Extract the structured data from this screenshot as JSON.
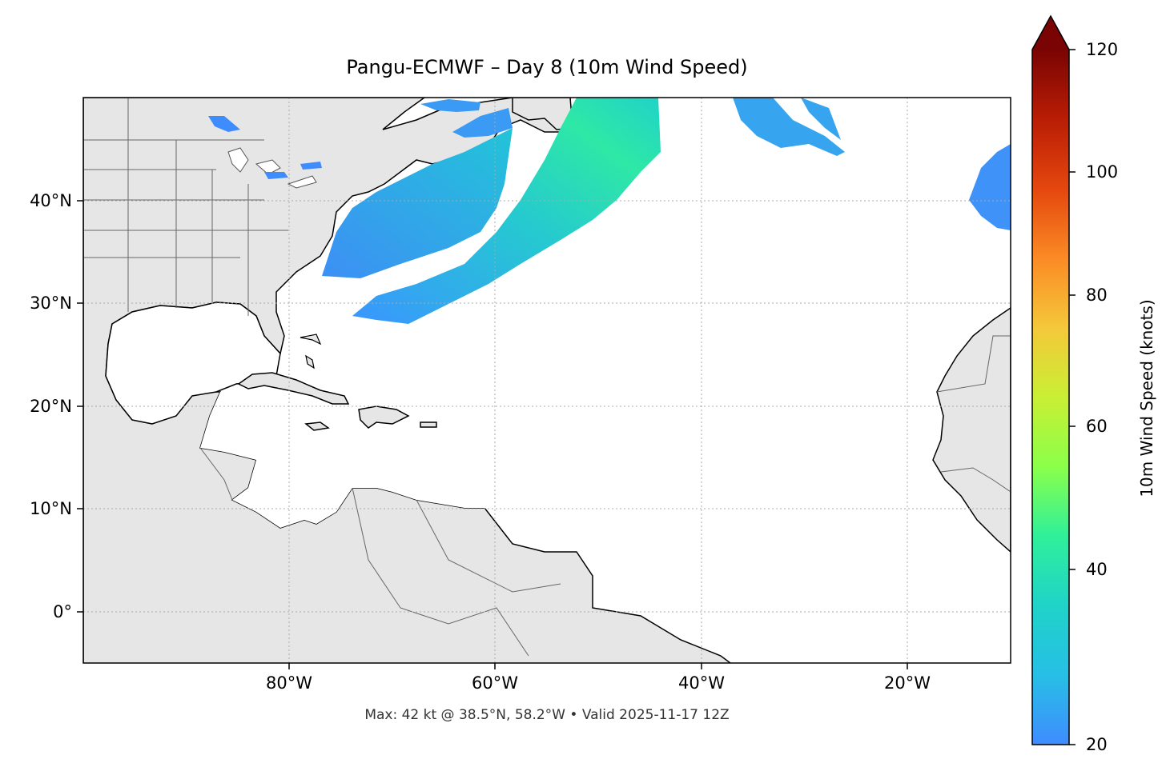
{
  "title": "Pangu-ECMWF – Day 8 (10m Wind Speed)",
  "footer": "Max: 42 kt @ 38.5°N, 58.2°W • Valid 2025-11-17 12Z",
  "axes": {
    "lon_ticks": [
      "80°W",
      "60°W",
      "40°W",
      "20°W"
    ],
    "lat_ticks": [
      "40°N",
      "30°N",
      "20°N",
      "10°N",
      "0°"
    ],
    "lon_range": [
      -100,
      -10
    ],
    "lat_range": [
      -5,
      50
    ]
  },
  "colorbar": {
    "label": "10m Wind Speed (knots)",
    "ticks": [
      "120",
      "100",
      "80",
      "60",
      "40",
      "20"
    ],
    "range": [
      20,
      120
    ],
    "extend": "max",
    "colormap": "turbo"
  },
  "colors": {
    "land": "#e6e6e6",
    "ocean": "#ffffff",
    "wind_low": "#3f8cff",
    "wind_mid": "#1fd3c8",
    "wind_peak": "#2ff0a0"
  },
  "chart_data": {
    "type": "heatmap",
    "variable": "10m wind speed",
    "units": "knots",
    "max_value": 42,
    "max_location": {
      "lat": 38.5,
      "lon": -58.2
    },
    "valid_time": "2025-11-17 12Z",
    "forecast_day": 8
  }
}
